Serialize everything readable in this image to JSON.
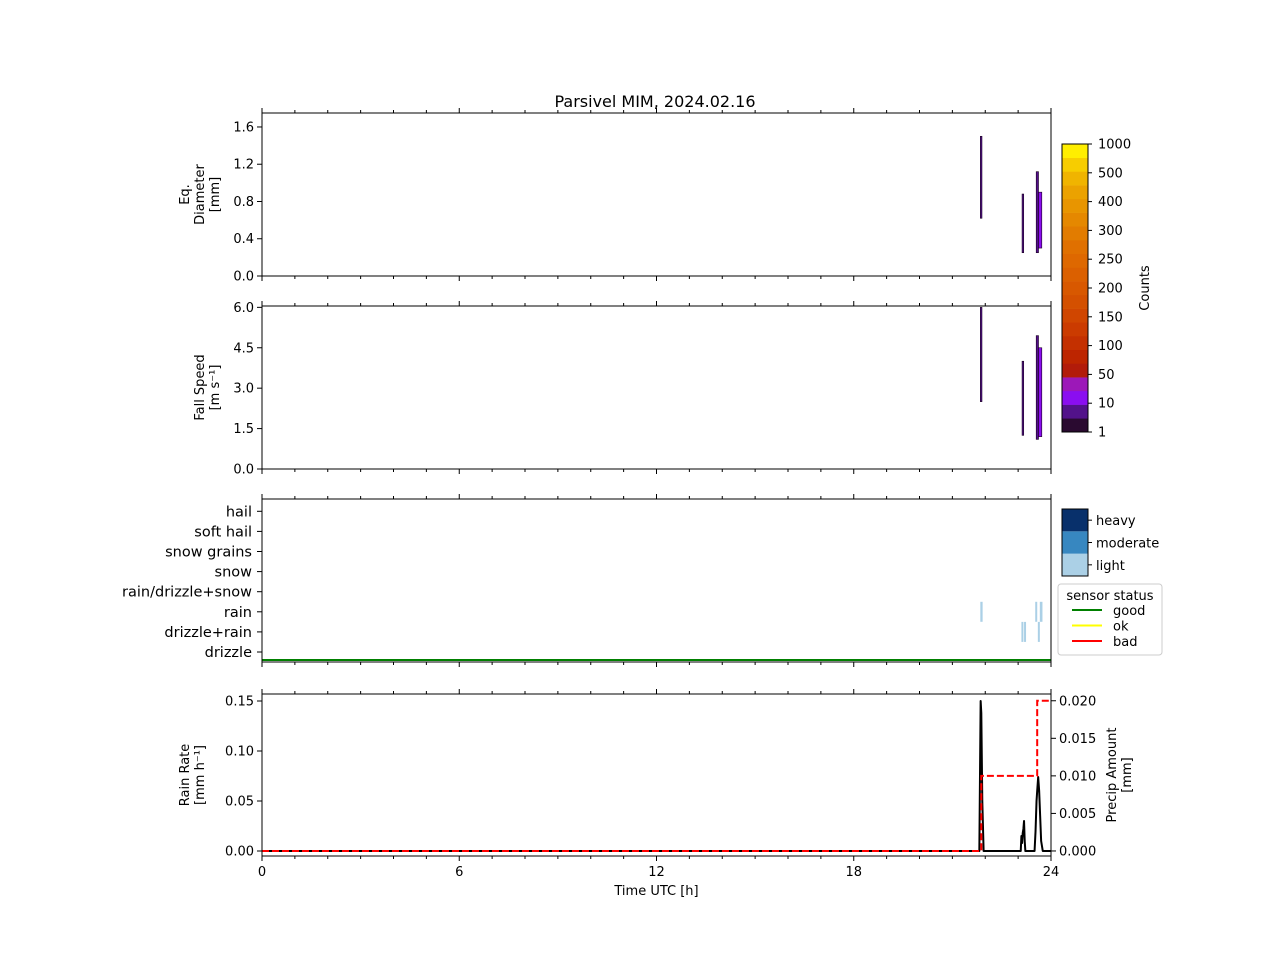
{
  "figure": {
    "title": "Parsivel MIM, 2024.02.16"
  },
  "chart_data": [
    {
      "type": "heatmap",
      "panel": "diameter",
      "ylabel_lines": [
        "Eq.",
        "Diameter",
        "[mm]"
      ],
      "xlim": [
        0,
        24
      ],
      "ylim": [
        0,
        1.75
      ],
      "yticks": [
        0.0,
        0.4,
        0.8,
        1.2,
        1.6
      ],
      "ytick_labels": [
        "0.0",
        "0.4",
        "0.8",
        "1.2",
        "1.6"
      ],
      "grid": false,
      "segments": [
        {
          "x0": 21.85,
          "x1": 21.9,
          "y0": 0.62,
          "y1": 1.5,
          "count": 5
        },
        {
          "x0": 23.12,
          "x1": 23.17,
          "y0": 0.25,
          "y1": 0.88,
          "count": 5
        },
        {
          "x0": 23.55,
          "x1": 23.62,
          "y0": 0.25,
          "y1": 1.12,
          "count": 8
        },
        {
          "x0": 23.62,
          "x1": 23.72,
          "y0": 0.3,
          "y1": 0.9,
          "count": 12
        }
      ]
    },
    {
      "type": "heatmap",
      "panel": "fall_speed",
      "ylabel_lines": [
        "Fall Speed",
        "[m s⁻¹]"
      ],
      "xlim": [
        0,
        24
      ],
      "ylim": [
        0,
        6.05
      ],
      "yticks": [
        0.0,
        1.5,
        3.0,
        4.5,
        6.0
      ],
      "ytick_labels": [
        "0.0",
        "1.5",
        "3.0",
        "4.5",
        "6.0"
      ],
      "grid": false,
      "segments": [
        {
          "x0": 21.85,
          "x1": 21.9,
          "y0": 2.5,
          "y1": 6.0,
          "count": 5
        },
        {
          "x0": 23.12,
          "x1": 23.17,
          "y0": 1.25,
          "y1": 4.0,
          "count": 5
        },
        {
          "x0": 23.55,
          "x1": 23.62,
          "y0": 1.1,
          "y1": 4.95,
          "count": 8
        },
        {
          "x0": 23.62,
          "x1": 23.72,
          "y0": 1.2,
          "y1": 4.5,
          "count": 12
        }
      ]
    },
    {
      "type": "heatmap",
      "panel": "precip_type",
      "xlim": [
        0,
        24
      ],
      "categories": [
        "drizzle",
        "drizzle+rain",
        "rain",
        "rain/drizzle+snow",
        "snow",
        "snow grains",
        "soft hail",
        "hail"
      ],
      "intensity_levels": [
        "light",
        "moderate",
        "heavy"
      ],
      "intensity_colors": [
        "#abd0e6",
        "#3787c0",
        "#08306b"
      ],
      "events": [
        {
          "x0": 21.85,
          "x1": 21.92,
          "category": "rain",
          "intensity": "light"
        },
        {
          "x0": 23.1,
          "x1": 23.16,
          "category": "drizzle+rain",
          "intensity": "light"
        },
        {
          "x0": 23.18,
          "x1": 23.24,
          "category": "drizzle+rain",
          "intensity": "light"
        },
        {
          "x0": 23.52,
          "x1": 23.58,
          "category": "rain",
          "intensity": "light"
        },
        {
          "x0": 23.6,
          "x1": 23.66,
          "category": "drizzle+rain",
          "intensity": "light"
        },
        {
          "x0": 23.66,
          "x1": 23.74,
          "category": "rain",
          "intensity": "light"
        }
      ],
      "sensor_status_legend": {
        "title": "sensor status",
        "entries": [
          {
            "label": "good",
            "color": "#008000"
          },
          {
            "label": "ok",
            "color": "#ffff00"
          },
          {
            "label": "bad",
            "color": "#ff0000"
          }
        ]
      },
      "sensor_status_series": {
        "status": "good",
        "x": [
          0,
          24
        ]
      }
    },
    {
      "type": "line",
      "panel": "rain",
      "xlabel": "Time UTC [h]",
      "ylabel_lines": [
        "Rain Rate",
        "[mm h⁻¹]"
      ],
      "y2label_lines": [
        "Precip Amount",
        "[mm]"
      ],
      "xlim": [
        0,
        24
      ],
      "xticks": [
        0,
        6,
        12,
        18,
        24
      ],
      "xtick_labels": [
        "0",
        "6",
        "12",
        "18",
        "24"
      ],
      "ylim": [
        -0.005,
        0.157
      ],
      "yticks": [
        0.0,
        0.05,
        0.1,
        0.15
      ],
      "ytick_labels": [
        "0.00",
        "0.05",
        "0.10",
        "0.15"
      ],
      "y2lim": [
        -0.00067,
        0.0209
      ],
      "y2ticks": [
        0.0,
        0.005,
        0.01,
        0.015,
        0.02
      ],
      "y2tick_labels": [
        "0.000",
        "0.005",
        "0.010",
        "0.015",
        "0.020"
      ],
      "series": [
        {
          "axis": "left",
          "color": "#000000",
          "style": "solid",
          "x": [
            0,
            21.82,
            21.86,
            21.88,
            21.91,
            21.95,
            23.08,
            23.1,
            23.12,
            23.14,
            23.16,
            23.18,
            23.2,
            23.22,
            23.5,
            23.53,
            23.56,
            23.58,
            23.61,
            23.64,
            23.67,
            23.7,
            23.75,
            24
          ],
          "y": [
            0,
            0,
            0.15,
            0.138,
            0.05,
            0,
            0,
            0.015,
            0.008,
            0.018,
            0.022,
            0.03,
            0.01,
            0,
            0,
            0.02,
            0.05,
            0.06,
            0.074,
            0.06,
            0.035,
            0.01,
            0,
            0
          ]
        },
        {
          "axis": "right",
          "color": "#ff0000",
          "style": "dashed",
          "step": true,
          "x": [
            0,
            21.88,
            23.58,
            24
          ],
          "y": [
            0,
            0.01,
            0.02,
            0.02
          ]
        }
      ]
    }
  ],
  "colorbar": {
    "label": "Counts",
    "tick_labels": [
      "1",
      "10",
      "50",
      "100",
      "150",
      "200",
      "250",
      "300",
      "400",
      "500",
      "1000"
    ],
    "bins": [
      {
        "lo": 1,
        "hi": 5,
        "color": "#2a0a30"
      },
      {
        "lo": 5,
        "hi": 10,
        "color": "#52128a"
      },
      {
        "lo": 10,
        "hi": 30,
        "color": "#8a0ef0"
      },
      {
        "lo": 30,
        "hi": 50,
        "color": "#9c18b8"
      },
      {
        "lo": 50,
        "hi": 75,
        "color": "#b21b0a"
      },
      {
        "lo": 75,
        "hi": 100,
        "color": "#bd2500"
      },
      {
        "lo": 100,
        "hi": 125,
        "color": "#c43000"
      },
      {
        "lo": 125,
        "hi": 150,
        "color": "#cb3b00"
      },
      {
        "lo": 150,
        "hi": 175,
        "color": "#d04600"
      },
      {
        "lo": 175,
        "hi": 200,
        "color": "#d45000"
      },
      {
        "lo": 200,
        "hi": 225,
        "color": "#d85800"
      },
      {
        "lo": 225,
        "hi": 250,
        "color": "#db6000"
      },
      {
        "lo": 250,
        "hi": 275,
        "color": "#de6800"
      },
      {
        "lo": 275,
        "hi": 300,
        "color": "#e07000"
      },
      {
        "lo": 300,
        "hi": 350,
        "color": "#e27c00"
      },
      {
        "lo": 350,
        "hi": 400,
        "color": "#e58800"
      },
      {
        "lo": 400,
        "hi": 450,
        "color": "#e89500"
      },
      {
        "lo": 450,
        "hi": 500,
        "color": "#eba200"
      },
      {
        "lo": 500,
        "hi": 750,
        "color": "#f0b400"
      },
      {
        "lo": 750,
        "hi": 900,
        "color": "#f7cd00"
      },
      {
        "lo": 900,
        "hi": 1000,
        "color": "#ffee00"
      }
    ]
  }
}
